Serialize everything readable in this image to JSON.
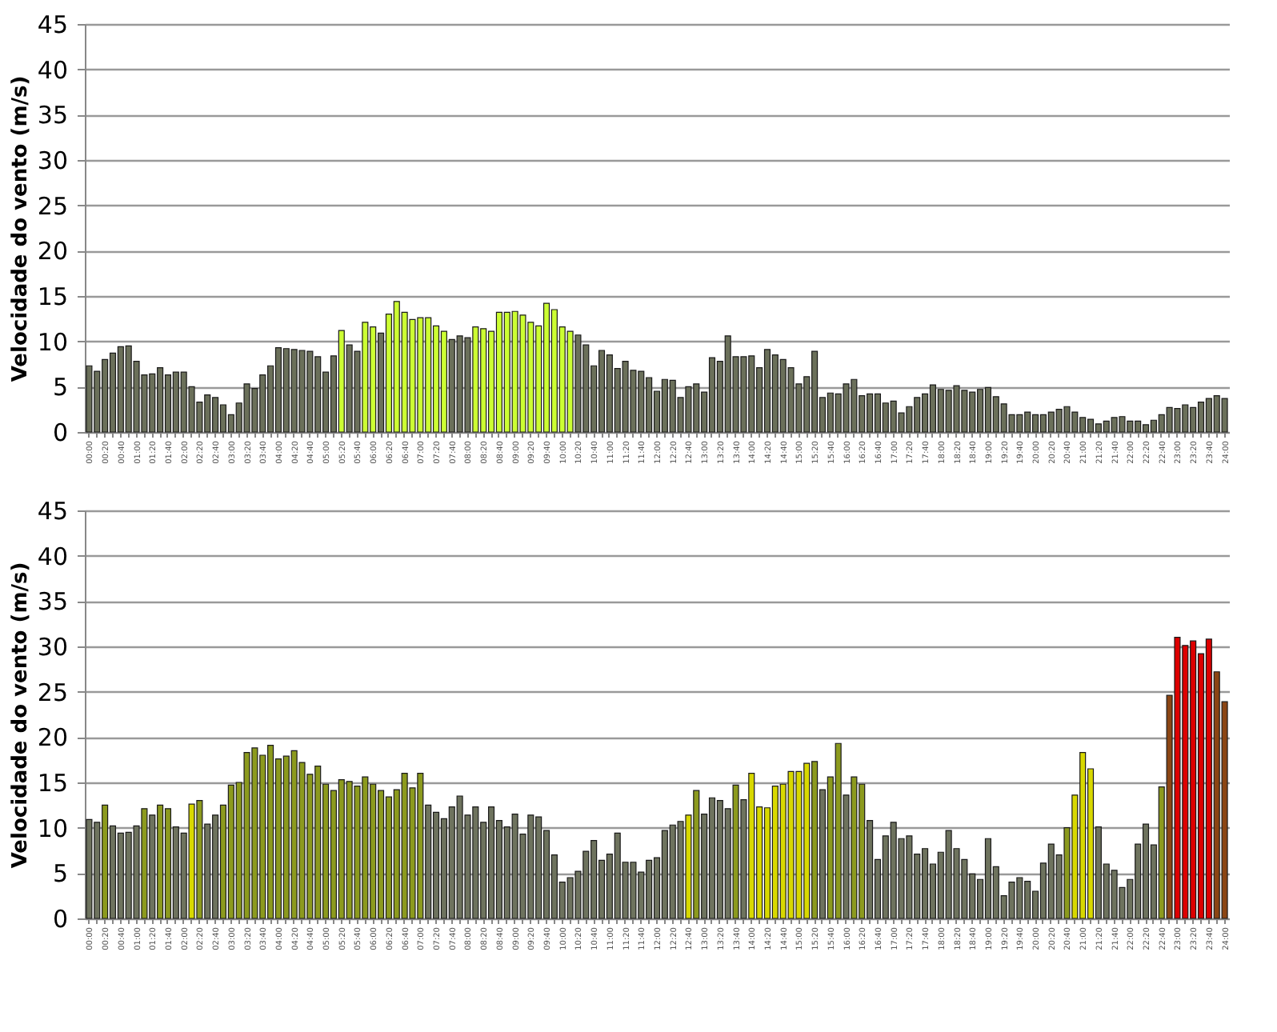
{
  "chart_data": [
    {
      "type": "bar",
      "ylabel": "Velocidade do vento (m/s)",
      "ylim": [
        0,
        45
      ],
      "yticks": [
        0,
        5,
        10,
        15,
        20,
        25,
        30,
        35,
        40,
        45
      ],
      "grid": "y",
      "categories": [
        "00:00",
        null,
        "00:20",
        null,
        "00:40",
        null,
        "01:00",
        null,
        "01:20",
        null,
        "01:40",
        null,
        "02:00",
        null,
        "02:20",
        null,
        "02:40",
        null,
        "03:00",
        null,
        "03:20",
        null,
        "03:40",
        null,
        "04:00",
        null,
        "04:20",
        null,
        "04:40",
        null,
        "05:00",
        null,
        "05:20",
        null,
        "05:40",
        null,
        "06:00",
        null,
        "06:20",
        null,
        "06:40",
        null,
        "07:00",
        null,
        "07:20",
        null,
        "07:40",
        null,
        "08:00",
        null,
        "08:20",
        null,
        "08:40",
        null,
        "09:00",
        null,
        "09:20",
        null,
        "09:40",
        null,
        "10:00",
        null,
        "10:20",
        null,
        "10:40",
        null,
        "11:00",
        null,
        "11:20",
        null,
        "11:40",
        null,
        "12:00",
        null,
        "12:20",
        null,
        "12:40",
        null,
        "13:00",
        null,
        "13:20",
        null,
        "13:40",
        null,
        "14:00",
        null,
        "14:20",
        null,
        "14:40",
        null,
        "15:00",
        null,
        "15:20",
        null,
        "15:40",
        null,
        "16:00",
        null,
        "16:20",
        null,
        "16:40",
        null,
        "17:00",
        null,
        "17:20",
        null,
        "17:40",
        null,
        "18:00",
        null,
        "18:20",
        null,
        "18:40",
        null,
        "19:00",
        null,
        "19:20",
        null,
        "19:40",
        null,
        "20:00",
        null,
        "20:20",
        null,
        "20:40",
        null,
        "21:00",
        null,
        "21:20",
        null,
        "21:40",
        null,
        "22:00",
        null,
        "22:20",
        null,
        "22:40",
        null,
        "23:00",
        null,
        "23:20",
        null,
        "23:40",
        null,
        "24:00"
      ],
      "values": [
        7.3,
        6.7,
        8.0,
        8.7,
        9.4,
        9.5,
        7.8,
        6.3,
        6.4,
        7.1,
        6.3,
        6.6,
        6.6,
        5.0,
        3.3,
        4.1,
        3.8,
        3.0,
        1.9,
        3.2,
        5.3,
        4.8,
        6.3,
        7.3,
        9.3,
        9.2,
        9.1,
        9.0,
        8.9,
        8.3,
        6.6,
        8.4,
        11.2,
        9.6,
        8.9,
        12.1,
        11.6,
        10.9,
        13.0,
        14.4,
        13.2,
        12.4,
        12.6,
        12.6,
        11.7,
        11.1,
        10.2,
        10.6,
        10.4,
        11.6,
        11.4,
        11.1,
        13.2,
        13.2,
        13.3,
        12.9,
        12.1,
        11.7,
        14.2,
        13.5,
        11.6,
        11.1,
        10.7,
        9.6,
        7.3,
        9.0,
        8.5,
        7.0,
        7.8,
        6.8,
        6.7,
        6.0,
        4.5,
        5.8,
        5.7,
        3.8,
        5.0,
        5.3,
        4.4,
        8.2,
        7.8,
        10.6,
        8.3,
        8.3,
        8.4,
        7.1,
        9.1,
        8.5,
        8.0,
        7.1,
        5.3,
        6.1,
        8.9,
        3.8,
        4.3,
        4.2,
        5.3,
        5.8,
        4.0,
        4.2,
        4.2,
        3.2,
        3.4,
        2.1,
        2.8,
        3.8,
        4.2,
        5.2,
        4.7,
        4.6,
        5.1,
        4.6,
        4.4,
        4.7,
        4.9,
        3.9,
        3.1,
        1.9,
        1.9,
        2.2,
        1.9,
        1.9,
        2.2,
        2.5,
        2.8,
        2.2,
        1.6,
        1.4,
        0.9,
        1.2,
        1.6,
        1.7,
        1.2,
        1.2,
        0.8,
        1.3,
        1.9,
        2.7,
        2.6,
        3.0,
        2.7,
        3.3,
        3.7,
        4.0,
        3.7
      ],
      "colors": [
        "#6b705a",
        "#6b705a",
        "#6b705a",
        "#6b705a",
        "#6b705a",
        "#6b705a",
        "#6b705a",
        "#6b705a",
        "#6b705a",
        "#6b705a",
        "#6b705a",
        "#6b705a",
        "#6b705a",
        "#6b705a",
        "#6b705a",
        "#6b705a",
        "#6b705a",
        "#6b705a",
        "#6b705a",
        "#6b705a",
        "#6b705a",
        "#6b705a",
        "#6b705a",
        "#6b705a",
        "#6b705a",
        "#6b705a",
        "#6b705a",
        "#6b705a",
        "#6b705a",
        "#6b705a",
        "#6b705a",
        "#6b705a",
        "#ccff33",
        "#6b705a",
        "#6b705a",
        "#ccff33",
        "#ccff33",
        "#6b705a",
        "#ccff33",
        "#ccff33",
        "#ccff33",
        "#ccff33",
        "#ccff33",
        "#ccff33",
        "#ccff33",
        "#ccff33",
        "#6b705a",
        "#6b705a",
        "#6b705a",
        "#ccff33",
        "#ccff33",
        "#ccff33",
        "#ccff33",
        "#ccff33",
        "#ccff33",
        "#ccff33",
        "#ccff33",
        "#ccff33",
        "#ccff33",
        "#ccff33",
        "#ccff33",
        "#ccff33",
        "#6b705a",
        "#6b705a",
        "#6b705a",
        "#6b705a",
        "#6b705a",
        "#6b705a",
        "#6b705a",
        "#6b705a",
        "#6b705a",
        "#6b705a",
        "#6b705a",
        "#6b705a",
        "#6b705a",
        "#6b705a",
        "#6b705a",
        "#6b705a",
        "#6b705a",
        "#6b705a",
        "#6b705a",
        "#6b705a",
        "#6b705a",
        "#6b705a",
        "#6b705a",
        "#6b705a",
        "#6b705a",
        "#6b705a",
        "#6b705a",
        "#6b705a",
        "#6b705a",
        "#6b705a",
        "#6b705a",
        "#6b705a",
        "#6b705a",
        "#6b705a",
        "#6b705a",
        "#6b705a",
        "#6b705a",
        "#6b705a",
        "#6b705a",
        "#6b705a",
        "#6b705a",
        "#6b705a",
        "#6b705a",
        "#6b705a",
        "#6b705a",
        "#6b705a",
        "#6b705a",
        "#6b705a",
        "#6b705a",
        "#6b705a",
        "#6b705a",
        "#6b705a",
        "#6b705a",
        "#6b705a",
        "#6b705a",
        "#6b705a",
        "#6b705a",
        "#6b705a",
        "#6b705a",
        "#6b705a",
        "#6b705a",
        "#6b705a",
        "#6b705a",
        "#6b705a",
        "#6b705a",
        "#6b705a",
        "#6b705a",
        "#6b705a",
        "#6b705a",
        "#6b705a",
        "#6b705a",
        "#6b705a",
        "#6b705a",
        "#6b705a",
        "#6b705a",
        "#6b705a",
        "#6b705a",
        "#6b705a",
        "#6b705a",
        "#6b705a",
        "#6b705a",
        "#6b705a",
        "#6b705a"
      ]
    },
    {
      "type": "bar",
      "ylabel": "Velocidade do vento (m/s)",
      "ylim": [
        0,
        45
      ],
      "yticks": [
        0,
        5,
        10,
        15,
        20,
        25,
        30,
        35,
        40,
        45
      ],
      "grid": "y",
      "categories": [
        "00:00",
        null,
        "00:20",
        null,
        "00:40",
        null,
        "01:00",
        null,
        "01:20",
        null,
        "01:40",
        null,
        "02:00",
        null,
        "02:20",
        null,
        "02:40",
        null,
        "03:00",
        null,
        "03:20",
        null,
        "03:40",
        null,
        "04:00",
        null,
        "04:20",
        null,
        "04:40",
        null,
        "05:00",
        null,
        "05:20",
        null,
        "05:40",
        null,
        "06:00",
        null,
        "06:20",
        null,
        "06:40",
        null,
        "07:00",
        null,
        "07:20",
        null,
        "07:40",
        null,
        "08:00",
        null,
        "08:20",
        null,
        "08:40",
        null,
        "09:00",
        null,
        "09:20",
        null,
        "09:40",
        null,
        "10:00",
        null,
        "10:20",
        null,
        "10:40",
        null,
        "11:00",
        null,
        "11:20",
        null,
        "11:40",
        null,
        "12:00",
        null,
        "12:20",
        null,
        "12:40",
        null,
        "13:00",
        null,
        "13:20",
        null,
        "13:40",
        null,
        "14:00",
        null,
        "14:20",
        null,
        "14:40",
        null,
        "15:00",
        null,
        "15:20",
        null,
        "15:40",
        null,
        "16:00",
        null,
        "16:20",
        null,
        "16:40",
        null,
        "17:00",
        null,
        "17:20",
        null,
        "17:40",
        null,
        "18:00",
        null,
        "18:20",
        null,
        "18:40",
        null,
        "19:00",
        null,
        "19:20",
        null,
        "19:40",
        null,
        "20:00",
        null,
        "20:20",
        null,
        "20:40",
        null,
        "21:00",
        null,
        "21:20",
        null,
        "21:40",
        null,
        "22:00",
        null,
        "22:20",
        null,
        "22:40",
        null,
        "23:00",
        null,
        "23:20",
        null,
        "23:40",
        null,
        "24:00"
      ],
      "values": [
        10.9,
        10.6,
        12.5,
        10.2,
        9.4,
        9.5,
        10.2,
        12.1,
        11.4,
        12.5,
        12.1,
        10.1,
        9.4,
        12.6,
        13.0,
        10.4,
        11.4,
        12.5,
        14.7,
        15.0,
        18.3,
        18.8,
        18.0,
        19.1,
        17.6,
        17.9,
        18.5,
        17.2,
        15.9,
        16.8,
        14.8,
        14.1,
        15.3,
        15.1,
        14.6,
        15.6,
        14.8,
        14.1,
        13.4,
        14.2,
        16.0,
        14.4,
        16.0,
        12.5,
        11.7,
        11.0,
        12.3,
        13.5,
        11.4,
        12.3,
        10.6,
        12.3,
        10.8,
        10.1,
        11.5,
        9.3,
        11.4,
        11.2,
        9.7,
        7.0,
        4.0,
        4.5,
        5.2,
        7.4,
        8.6,
        6.4,
        7.1,
        9.4,
        6.2,
        6.2,
        5.1,
        6.4,
        6.7,
        9.7,
        10.3,
        10.7,
        11.4,
        14.1,
        11.5,
        13.3,
        13.0,
        12.1,
        14.7,
        13.1,
        16.0,
        12.3,
        12.2,
        14.6,
        14.8,
        16.2,
        16.2,
        17.1,
        17.3,
        14.2,
        15.6,
        19.3,
        13.6,
        15.6,
        14.8,
        10.8,
        6.5,
        9.1,
        10.6,
        8.8,
        9.1,
        7.1,
        7.7,
        6.0,
        7.3,
        9.7,
        7.7,
        6.5,
        4.9,
        4.3,
        8.8,
        5.7,
        2.5,
        4.0,
        4.5,
        4.1,
        3.0,
        6.1,
        8.2,
        7.0,
        10.0,
        13.6,
        18.3,
        16.5,
        10.1,
        6.0,
        5.3,
        3.4,
        4.3,
        8.2,
        10.4,
        8.1,
        14.5,
        24.6,
        31.0,
        30.1,
        30.6,
        29.2,
        30.8,
        27.2,
        23.9
      ],
      "colors": [
        "#6e735e",
        "#6e735e",
        "#8c9a1e",
        "#6e735e",
        "#6e735e",
        "#6e735e",
        "#6e735e",
        "#8c9a1e",
        "#6e735e",
        "#8c9a1e",
        "#8c9a1e",
        "#6e735e",
        "#6e735e",
        "#d8d800",
        "#8c9a1e",
        "#6e735e",
        "#6e735e",
        "#8c9a1e",
        "#8c9a1e",
        "#8c9a1e",
        "#8c9a1e",
        "#8c9a1e",
        "#8c9a1e",
        "#8c9a1e",
        "#8c9a1e",
        "#8c9a1e",
        "#8c9a1e",
        "#8c9a1e",
        "#8c9a1e",
        "#8c9a1e",
        "#8c9a1e",
        "#8c9a1e",
        "#8c9a1e",
        "#8c9a1e",
        "#8c9a1e",
        "#8c9a1e",
        "#8c9a1e",
        "#8c9a1e",
        "#8c9a1e",
        "#8c9a1e",
        "#8c9a1e",
        "#8c9a1e",
        "#8c9a1e",
        "#6e735e",
        "#6e735e",
        "#6e735e",
        "#6e735e",
        "#6e735e",
        "#6e735e",
        "#6e735e",
        "#6e735e",
        "#6e735e",
        "#6e735e",
        "#6e735e",
        "#6e735e",
        "#6e735e",
        "#6e735e",
        "#6e735e",
        "#6e735e",
        "#6e735e",
        "#6e735e",
        "#6e735e",
        "#6e735e",
        "#6e735e",
        "#6e735e",
        "#6e735e",
        "#6e735e",
        "#6e735e",
        "#6e735e",
        "#6e735e",
        "#6e735e",
        "#6e735e",
        "#6e735e",
        "#6e735e",
        "#6e735e",
        "#6e735e",
        "#d8d800",
        "#8c9a1e",
        "#6e735e",
        "#6e735e",
        "#6e735e",
        "#6e735e",
        "#8c9a1e",
        "#6e735e",
        "#d8d800",
        "#d8d800",
        "#d8d800",
        "#d8d800",
        "#d8d800",
        "#d8d800",
        "#d8d800",
        "#d8d800",
        "#8c9a1e",
        "#6e735e",
        "#8c9a1e",
        "#8c9a1e",
        "#6e735e",
        "#8c9a1e",
        "#8c9a1e",
        "#6e735e",
        "#6e735e",
        "#6e735e",
        "#6e735e",
        "#6e735e",
        "#6e735e",
        "#6e735e",
        "#6e735e",
        "#6e735e",
        "#6e735e",
        "#6e735e",
        "#6e735e",
        "#6e735e",
        "#6e735e",
        "#6e735e",
        "#6e735e",
        "#6e735e",
        "#6e735e",
        "#6e735e",
        "#6e735e",
        "#6e735e",
        "#6e735e",
        "#6e735e",
        "#6e735e",
        "#6e735e",
        "#8c9a1e",
        "#d8d800",
        "#d8d800",
        "#d8d800",
        "#6e735e",
        "#6e735e",
        "#6e735e",
        "#6e735e",
        "#6e735e",
        "#6e735e",
        "#6e735e",
        "#6e735e",
        "#8c9a1e",
        "#8b4513",
        "#dd0000",
        "#dd0000",
        "#dd0000",
        "#dd0000",
        "#dd0000",
        "#8b4513",
        "#8b4513"
      ]
    }
  ]
}
